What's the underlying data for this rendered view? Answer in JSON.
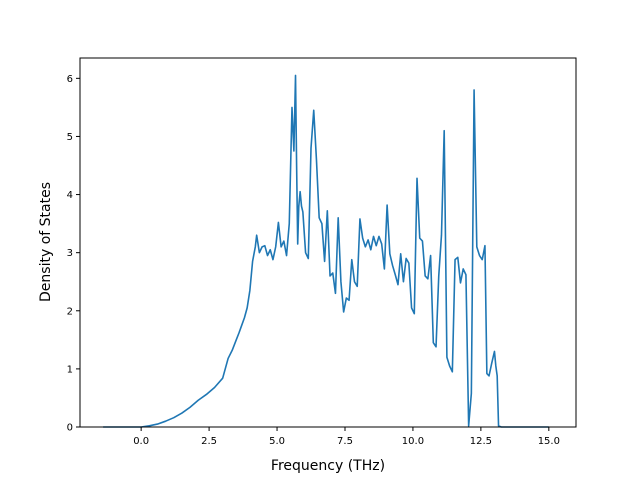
{
  "chart_data": {
    "type": "line",
    "title": "",
    "xlabel": "Frequency (THz)",
    "ylabel": "Density of States",
    "xlim": [
      -2.25,
      16.0
    ],
    "ylim": [
      0,
      6.35
    ],
    "xticks": [
      0.0,
      2.5,
      5.0,
      7.5,
      10.0,
      12.5,
      15.0
    ],
    "xtick_labels": [
      "0.0",
      "2.5",
      "5.0",
      "7.5",
      "10.0",
      "12.5",
      "15.0"
    ],
    "yticks": [
      0,
      1,
      2,
      3,
      4,
      5,
      6
    ],
    "ytick_labels": [
      "0",
      "1",
      "2",
      "3",
      "4",
      "5",
      "6"
    ],
    "grid": false,
    "legend": "none",
    "line_color": "#1f77b4",
    "series": [
      {
        "x": [
          -1.4,
          -1.0,
          -0.5,
          0.0,
          0.3,
          0.6,
          0.9,
          1.2,
          1.5,
          1.8,
          2.1,
          2.4,
          2.7,
          3.0,
          3.2,
          3.35,
          3.5,
          3.6,
          3.7,
          3.8,
          3.9,
          4.0,
          4.1,
          4.2,
          4.25,
          4.35,
          4.45,
          4.55,
          4.65,
          4.75,
          4.85,
          4.95,
          5.05,
          5.15,
          5.25,
          5.35,
          5.45,
          5.55,
          5.62,
          5.68,
          5.72,
          5.76,
          5.8,
          5.85,
          5.9,
          5.95,
          6.05,
          6.15,
          6.25,
          6.35,
          6.45,
          6.55,
          6.65,
          6.75,
          6.85,
          6.95,
          7.05,
          7.15,
          7.25,
          7.35,
          7.45,
          7.55,
          7.65,
          7.75,
          7.85,
          7.95,
          8.05,
          8.15,
          8.25,
          8.35,
          8.45,
          8.55,
          8.65,
          8.75,
          8.85,
          8.95,
          9.05,
          9.15,
          9.25,
          9.35,
          9.45,
          9.55,
          9.65,
          9.75,
          9.85,
          9.95,
          10.05,
          10.15,
          10.25,
          10.35,
          10.45,
          10.55,
          10.65,
          10.75,
          10.85,
          10.95,
          11.05,
          11.15,
          11.25,
          11.35,
          11.45,
          11.55,
          11.65,
          11.75,
          11.85,
          11.95,
          12.05,
          12.15,
          12.25,
          12.35,
          12.45,
          12.55,
          12.65,
          12.72,
          12.8,
          12.9,
          13.0,
          13.05,
          13.1,
          13.15,
          13.25,
          13.35,
          13.45,
          13.55,
          13.65,
          13.75,
          13.85,
          14.5,
          15.0
        ],
        "y": [
          0.0,
          0.0,
          0.0,
          0.0,
          0.02,
          0.05,
          0.1,
          0.16,
          0.24,
          0.34,
          0.46,
          0.56,
          0.68,
          0.84,
          1.18,
          1.32,
          1.5,
          1.62,
          1.75,
          1.88,
          2.05,
          2.35,
          2.85,
          3.1,
          3.3,
          3.0,
          3.1,
          3.12,
          2.95,
          3.05,
          2.88,
          3.1,
          3.52,
          3.1,
          3.2,
          2.95,
          3.5,
          5.5,
          4.75,
          6.05,
          4.5,
          3.15,
          3.8,
          4.05,
          3.8,
          3.7,
          3.0,
          2.9,
          4.8,
          5.45,
          4.6,
          3.6,
          3.5,
          2.85,
          3.72,
          2.6,
          2.65,
          2.3,
          3.6,
          2.5,
          1.98,
          2.22,
          2.18,
          2.88,
          2.5,
          2.42,
          3.58,
          3.25,
          3.1,
          3.22,
          3.05,
          3.28,
          3.12,
          3.28,
          3.15,
          2.72,
          3.82,
          2.98,
          2.78,
          2.62,
          2.45,
          2.98,
          2.5,
          2.9,
          2.82,
          2.05,
          1.95,
          4.28,
          3.25,
          3.2,
          2.6,
          2.55,
          2.95,
          1.45,
          1.38,
          2.6,
          3.3,
          5.1,
          1.2,
          1.05,
          0.95,
          2.88,
          2.92,
          2.48,
          2.72,
          2.62,
          0.02,
          0.58,
          5.8,
          3.1,
          2.95,
          2.88,
          3.12,
          0.92,
          0.88,
          1.1,
          1.3,
          1.05,
          0.88,
          0.02,
          0.0,
          0.0,
          0.0,
          0.0,
          0.0,
          0.0,
          0.0,
          0.0,
          0.0
        ]
      }
    ]
  }
}
